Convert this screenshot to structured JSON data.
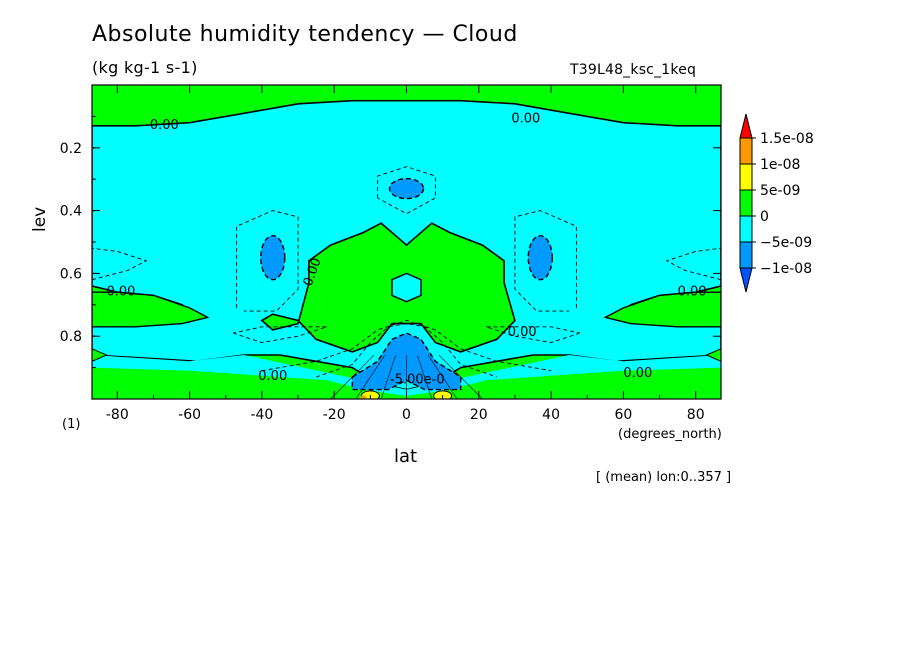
{
  "header": {
    "title": "Absolute humidity tendency — Cloud",
    "units": "(kg kg-1 s-1)",
    "run_id": "T39L48_ksc_1keq"
  },
  "footer": {
    "paren_label": "(1)",
    "mean_note": "[ (mean) lon:0..357 ]"
  },
  "colors": {
    "level_above_1.5e-08": "#ff0000",
    "level_1e-08_to_1.5e-08": "#ff9900",
    "level_5e-09_to_1e-08": "#ffff00",
    "level_0_to_5e-09": "#00ff00",
    "level_-5e-09_to_0": "#00ffff",
    "level_-1e-08_to_-5e-09": "#0099ff",
    "level_below_-1e-08": "#0055ff"
  },
  "chart_data": {
    "type": "heatmap",
    "title": "Absolute humidity tendency — Cloud",
    "subtitle": "(kg kg-1 s-1)",
    "xlabel": "lat",
    "xunit": "(degrees_north)",
    "ylabel": "lev",
    "xlim": [
      -87,
      87
    ],
    "ylim": [
      1.0,
      0.0
    ],
    "y_axis_inverted": true,
    "x_ticks": [
      -80,
      -60,
      -40,
      -20,
      0,
      20,
      40,
      60,
      80
    ],
    "x_tick_labels": [
      "-80",
      "-60",
      "-40",
      "-20",
      "0",
      "20",
      "40",
      "60",
      "80"
    ],
    "y_ticks": [
      0.2,
      0.4,
      0.6,
      0.8
    ],
    "y_tick_labels": [
      "0.2",
      "0.4",
      "0.6",
      "0.8"
    ],
    "colorbar": {
      "levels": [
        -1e-08,
        -5e-09,
        0,
        5e-09,
        1e-08,
        1.5e-08
      ],
      "labels": [
        "−1e-08",
        "−5e-09",
        "0",
        "5e-09",
        "1e-08",
        "1.5e-08"
      ]
    },
    "contour_labels": [
      "0.00",
      "0.00",
      "0.00",
      "0.00",
      "0.00",
      "0.00",
      "0.00",
      "0.00",
      "-5.00e-0"
    ],
    "fields": {
      "background_level_range": [
        0,
        5e-09
      ],
      "regions": [
        {
          "level_range": [
            -5e-09,
            0
          ],
          "where": "broad band lev 0.12–0.95, all latitudes, except the central green area and polar green tongues"
        },
        {
          "level_range": [
            0,
            5e-09
          ],
          "where": "central mid-level area lat −30..30, lev 0.45–0.85"
        },
        {
          "level_range": [
            0,
            5e-09
          ],
          "where": "polar tongues near lev 0.65–0.80 at lat ±65..87"
        },
        {
          "level_range": [
            -1e-08,
            -5e-09
          ],
          "where": "small cells near lat ±37, lev 0.5–0.6 and lat 0, lev 0.33"
        },
        {
          "level_range": [
            -1e-08,
            -5e-09
          ],
          "where": "near-surface band lat −15..15, lev 0.78–0.97"
        },
        {
          "level_range": [
            5e-09,
            1e-08
          ],
          "where": "small near-surface spots at lat ±10, lev ~0.98"
        }
      ]
    }
  }
}
